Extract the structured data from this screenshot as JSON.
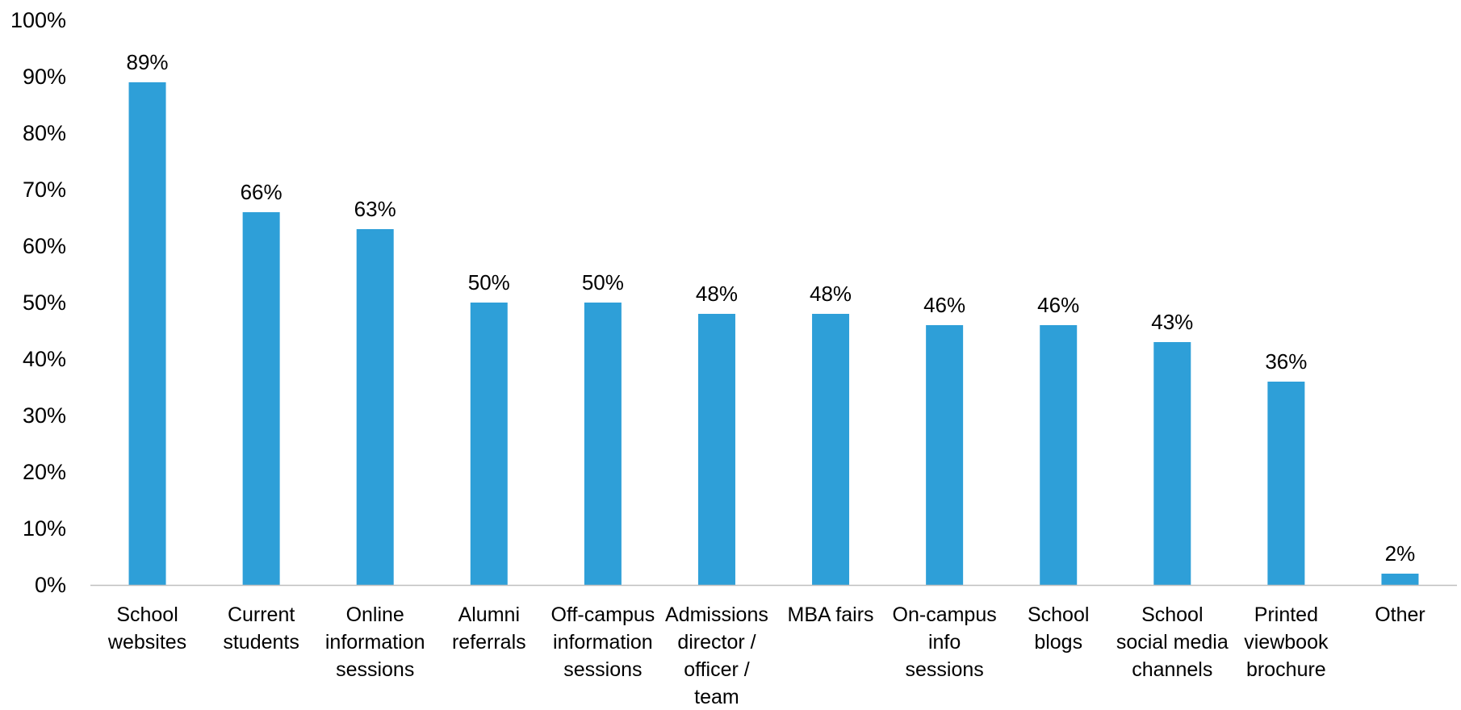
{
  "chart_data": {
    "type": "bar",
    "title": "",
    "xlabel": "",
    "ylabel": "",
    "ylim": [
      0,
      100
    ],
    "y_ticks": [
      0,
      10,
      20,
      30,
      40,
      50,
      60,
      70,
      80,
      90,
      100
    ],
    "y_tick_format": "percent",
    "grid": false,
    "legend": "none",
    "categories": [
      [
        "School",
        "websites"
      ],
      [
        "Current",
        "students"
      ],
      [
        "Online",
        "information",
        "sessions"
      ],
      [
        "Alumni",
        "referrals"
      ],
      [
        "Off-campus",
        "information",
        "sessions"
      ],
      [
        "Admissions",
        "director /",
        "officer /",
        "team"
      ],
      [
        "MBA fairs"
      ],
      [
        "On-campus",
        "info",
        "sessions"
      ],
      [
        "School",
        "blogs"
      ],
      [
        "School",
        "social media",
        "channels"
      ],
      [
        "Printed",
        "viewbook",
        "brochure"
      ],
      [
        "Other"
      ]
    ],
    "values": [
      89,
      66,
      63,
      50,
      50,
      48,
      48,
      46,
      46,
      43,
      36,
      2
    ],
    "data_labels": [
      "89%",
      "66%",
      "63%",
      "50%",
      "50%",
      "48%",
      "48%",
      "46%",
      "46%",
      "43%",
      "36%",
      "2%"
    ],
    "colors": {
      "bar": "#2E9FD8",
      "axis": "#BFBFBF",
      "text": "#000000"
    }
  }
}
